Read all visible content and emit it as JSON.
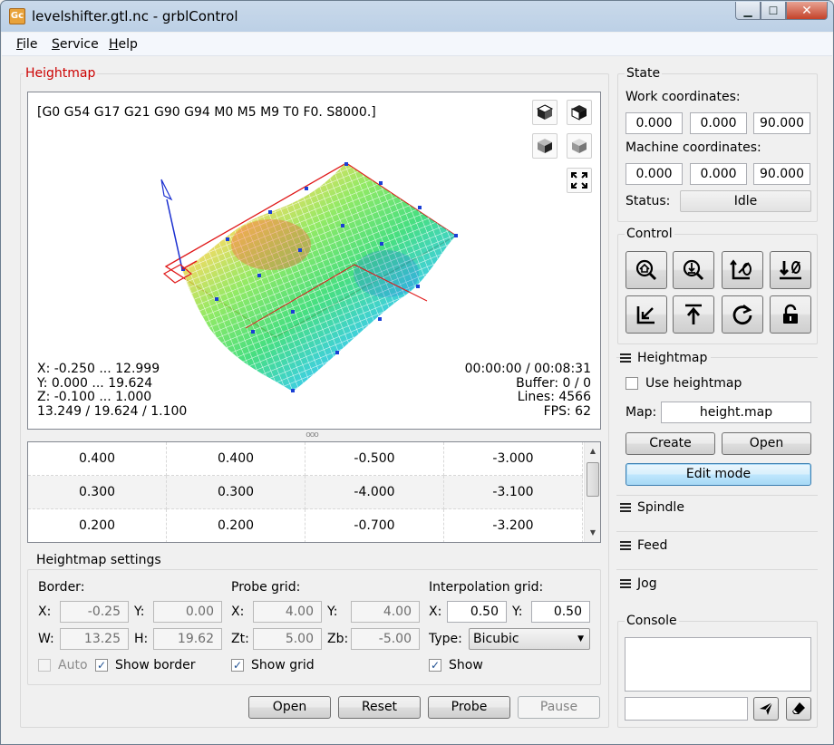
{
  "window": {
    "title": "levelshifter.gtl.nc - grblControl",
    "icon_text": "Gc",
    "buttons": {
      "minimize": "▁",
      "maximize": "☐",
      "close": "✕"
    }
  },
  "menu": [
    "File",
    "Service",
    "Help"
  ],
  "heightmap_panel": {
    "title": "Heightmap",
    "gcode_state": "[G0 G54 G17 G21 G90 G94 M0 M5 M9 T0 F0. S8000.]",
    "info_left": [
      "X: -0.250 ... 12.999",
      "Y: 0.000 ... 19.624",
      "Z: -0.100 ... 1.000",
      "13.249 / 19.624 / 1.100"
    ],
    "info_right": [
      "00:00:00 / 00:08:31",
      "Buffer: 0 / 0",
      "Lines: 4566",
      "FPS: 62"
    ],
    "view_icons": [
      "cube-top-icon",
      "cube-front-icon",
      "cube-left-icon",
      "cube-iso-icon",
      "fit-view-icon"
    ],
    "splitter": "ooo"
  },
  "table": {
    "rows": [
      [
        "0.400",
        "0.400",
        "-0.500",
        "-3.000"
      ],
      [
        "0.300",
        "0.300",
        "-4.000",
        "-3.100"
      ],
      [
        "0.200",
        "0.200",
        "-0.700",
        "-3.200"
      ]
    ]
  },
  "settings": {
    "title": "Heightmap settings",
    "border": {
      "label": "Border:",
      "x_label": "X:",
      "x": "-0.25",
      "y_label": "Y:",
      "y": "0.00",
      "w_label": "W:",
      "w": "13.25",
      "h_label": "H:",
      "h": "19.62",
      "auto_label": "Auto",
      "show_border_label": "Show border"
    },
    "probe": {
      "label": "Probe grid:",
      "x_label": "X:",
      "x": "4.00",
      "y_label": "Y:",
      "y": "4.00",
      "zt_label": "Zt:",
      "zt": "5.00",
      "zb_label": "Zb:",
      "zb": "-5.00",
      "show_grid_label": "Show grid"
    },
    "interp": {
      "label": "Interpolation grid:",
      "x_label": "X:",
      "x": "0.50",
      "y_label": "Y:",
      "y": "0.50",
      "type_label": "Type:",
      "type": "Bicubic",
      "show_label": "Show"
    }
  },
  "bottom_buttons": {
    "open": "Open",
    "reset": "Reset",
    "probe": "Probe",
    "pause": "Pause"
  },
  "state": {
    "title": "State",
    "work_label": "Work coordinates:",
    "work": [
      "0.000",
      "0.000",
      "90.000"
    ],
    "machine_label": "Machine coordinates:",
    "machine": [
      "0.000",
      "0.000",
      "90.000"
    ],
    "status_label": "Status:",
    "status": "Idle"
  },
  "control": {
    "title": "Control",
    "buttons": [
      "home-icon",
      "probe-z-icon",
      "zero-xy-icon",
      "zero-z-icon",
      "restore-origin-icon",
      "safe-position-icon",
      "reset-icon",
      "unlock-icon"
    ]
  },
  "heightmap_side": {
    "title": "Heightmap",
    "use_label": "Use heightmap",
    "map_label": "Map:",
    "map": "height.map",
    "create": "Create",
    "open": "Open",
    "edit_mode": "Edit mode"
  },
  "sections": {
    "spindle": "Spindle",
    "feed": "Feed",
    "jog": "Jog"
  },
  "console": {
    "title": "Console"
  },
  "colors": {
    "accent_red": "#cc0000",
    "title_bg": "#bcd0e6"
  }
}
